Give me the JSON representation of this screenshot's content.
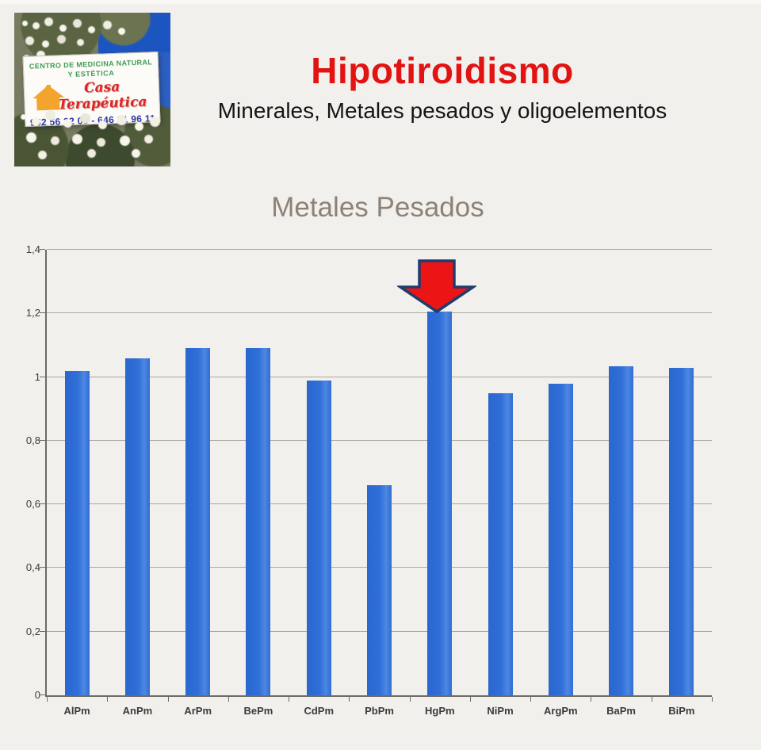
{
  "header": {
    "logo": {
      "sign_line1": "CENTRO DE MEDICINA NATURAL",
      "sign_line2": "Y ESTÉTICA",
      "sign_name": "Casa Terapéutica",
      "sign_phone": "952 56 32 05 - 646 21 96 11"
    },
    "title": "Hipotiroidismo",
    "title_color": "#e21313",
    "subtitle": "Minerales, Metales pesados y oligoelementos"
  },
  "chart_data": {
    "type": "bar",
    "title": "Metales Pesados",
    "categories": [
      "AlPm",
      "AnPm",
      "ArPm",
      "BePm",
      "CdPm",
      "PbPm",
      "HgPm",
      "NiPm",
      "ArgPm",
      "BaPm",
      "BiPm"
    ],
    "values": [
      1.02,
      1.06,
      1.09,
      1.09,
      0.99,
      0.66,
      1.205,
      0.95,
      0.98,
      1.035,
      1.03
    ],
    "xlabel": "",
    "ylabel": "",
    "ylim": [
      0,
      1.4
    ],
    "ytick_values": [
      0,
      0.2,
      0.4,
      0.6,
      0.8,
      1.0,
      1.2,
      1.4
    ],
    "ytick_labels": [
      "0",
      "0,2",
      "0,4",
      "0,6",
      "0,8",
      "1",
      "1,2",
      "1,4"
    ],
    "grid": true,
    "legend": false,
    "bar_color": "#2e6dd3",
    "grid_color": "#aca69f",
    "axis_color": "#6e6a64",
    "title_color": "#8c8277",
    "annotation": {
      "type": "down-arrow",
      "target_category": "HgPm",
      "fill": "#ec1414",
      "stroke": "#1e3c6e"
    }
  }
}
